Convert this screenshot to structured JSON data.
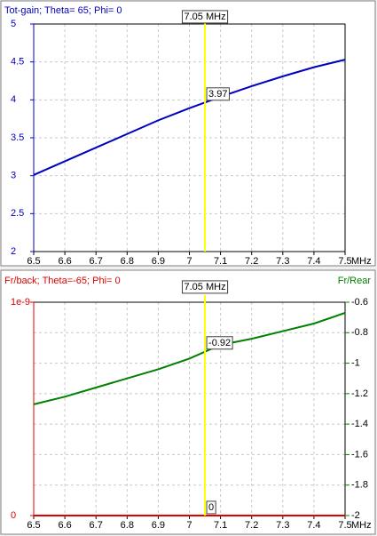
{
  "chart_data": [
    {
      "type": "line",
      "title": "Tot-gain; Theta= 65; Phi= 0",
      "title_color": "#0000c0",
      "x_unit": "MHz",
      "x": [
        6.5,
        6.6,
        6.7,
        6.8,
        6.9,
        7,
        7.1,
        7.2,
        7.3,
        7.4,
        7.5
      ],
      "series": [
        {
          "color": "#0000c0",
          "values": [
            3.01,
            3.19,
            3.37,
            3.55,
            3.73,
            3.89,
            4.04,
            4.18,
            4.31,
            4.43,
            4.53
          ],
          "cursor_value": 3.97
        }
      ],
      "xlim": [
        6.5,
        7.5
      ],
      "xticks": [
        6.5,
        6.6,
        6.7,
        6.8,
        6.9,
        7,
        7.1,
        7.2,
        7.3,
        7.4,
        7.5
      ],
      "ylim": [
        2,
        5
      ],
      "yticks": [
        2,
        2.5,
        3,
        3.5,
        4,
        4.5,
        5
      ],
      "ycolor": "#0000c0",
      "cursor": {
        "x": 7.05,
        "label": "7.05 MHz"
      },
      "grid": true
    },
    {
      "type": "line",
      "title": "Fr/back; Theta=-65; Phi= 0",
      "title_color": "#e00000",
      "y2label": "Fr/Rear",
      "x_unit": "MHz",
      "x": [
        6.5,
        6.6,
        6.7,
        6.8,
        6.9,
        7,
        7.1,
        7.2,
        7.3,
        7.4,
        7.5
      ],
      "series": [
        {
          "color": "#e00000",
          "values": [
            0,
            0,
            0,
            0,
            0,
            0,
            0,
            0,
            0,
            0,
            0
          ],
          "cursor_value": 0
        },
        {
          "color": "#008000",
          "axis": "y2",
          "values": [
            -1.27,
            -1.22,
            -1.16,
            -1.1,
            -1.04,
            -0.97,
            -0.88,
            -0.84,
            -0.79,
            -0.74,
            -0.67
          ],
          "cursor_value": -0.92
        }
      ],
      "xlim": [
        6.5,
        7.5
      ],
      "xticks": [
        6.5,
        6.6,
        6.7,
        6.8,
        6.9,
        7,
        7.1,
        7.2,
        7.3,
        7.4,
        7.5
      ],
      "ylim": [
        0,
        1e-09
      ],
      "yticks": [
        0,
        {
          "value": 1e-09,
          "label": "1e-9"
        }
      ],
      "ycolor": "#e00000",
      "y2lim": [
        -2,
        -0.6
      ],
      "y2ticks": [
        -2,
        -1.8,
        -1.6,
        -1.4,
        -1.2,
        -1,
        -0.8,
        -0.6
      ],
      "y2color": "#008000",
      "cursor": {
        "x": 7.05,
        "label": "7.05 MHz"
      },
      "grid": true
    }
  ]
}
